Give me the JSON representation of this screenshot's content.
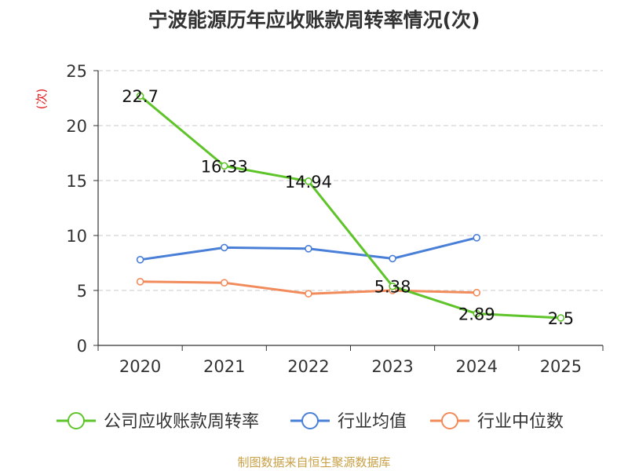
{
  "chart_data": {
    "type": "line",
    "title": "宁波能源历年应收账款周转率情况(次)",
    "ylabel": "(次)",
    "xlabel": "",
    "categories": [
      "2020",
      "2021",
      "2022",
      "2023",
      "2024",
      "2025"
    ],
    "ylim": [
      0,
      25
    ],
    "yticks": [
      0,
      5,
      10,
      15,
      20,
      25
    ],
    "grid": true,
    "legend_position": "bottom",
    "series": [
      {
        "name": "公司应收账款周转率",
        "color": "#5ec42a",
        "values": [
          22.7,
          16.33,
          14.94,
          5.38,
          2.89,
          2.5
        ],
        "labels": [
          "22.7",
          "16.33",
          "14.94",
          "5.38",
          "2.89",
          "2.5"
        ]
      },
      {
        "name": "行业均值",
        "color": "#4a7fd8",
        "values": [
          7.8,
          8.9,
          8.8,
          7.9,
          9.8,
          null
        ]
      },
      {
        "name": "行业中位数",
        "color": "#f28b5b",
        "values": [
          5.8,
          5.7,
          4.7,
          5.0,
          4.8,
          null
        ]
      }
    ]
  },
  "source_text": "制图数据来自恒生聚源数据库"
}
